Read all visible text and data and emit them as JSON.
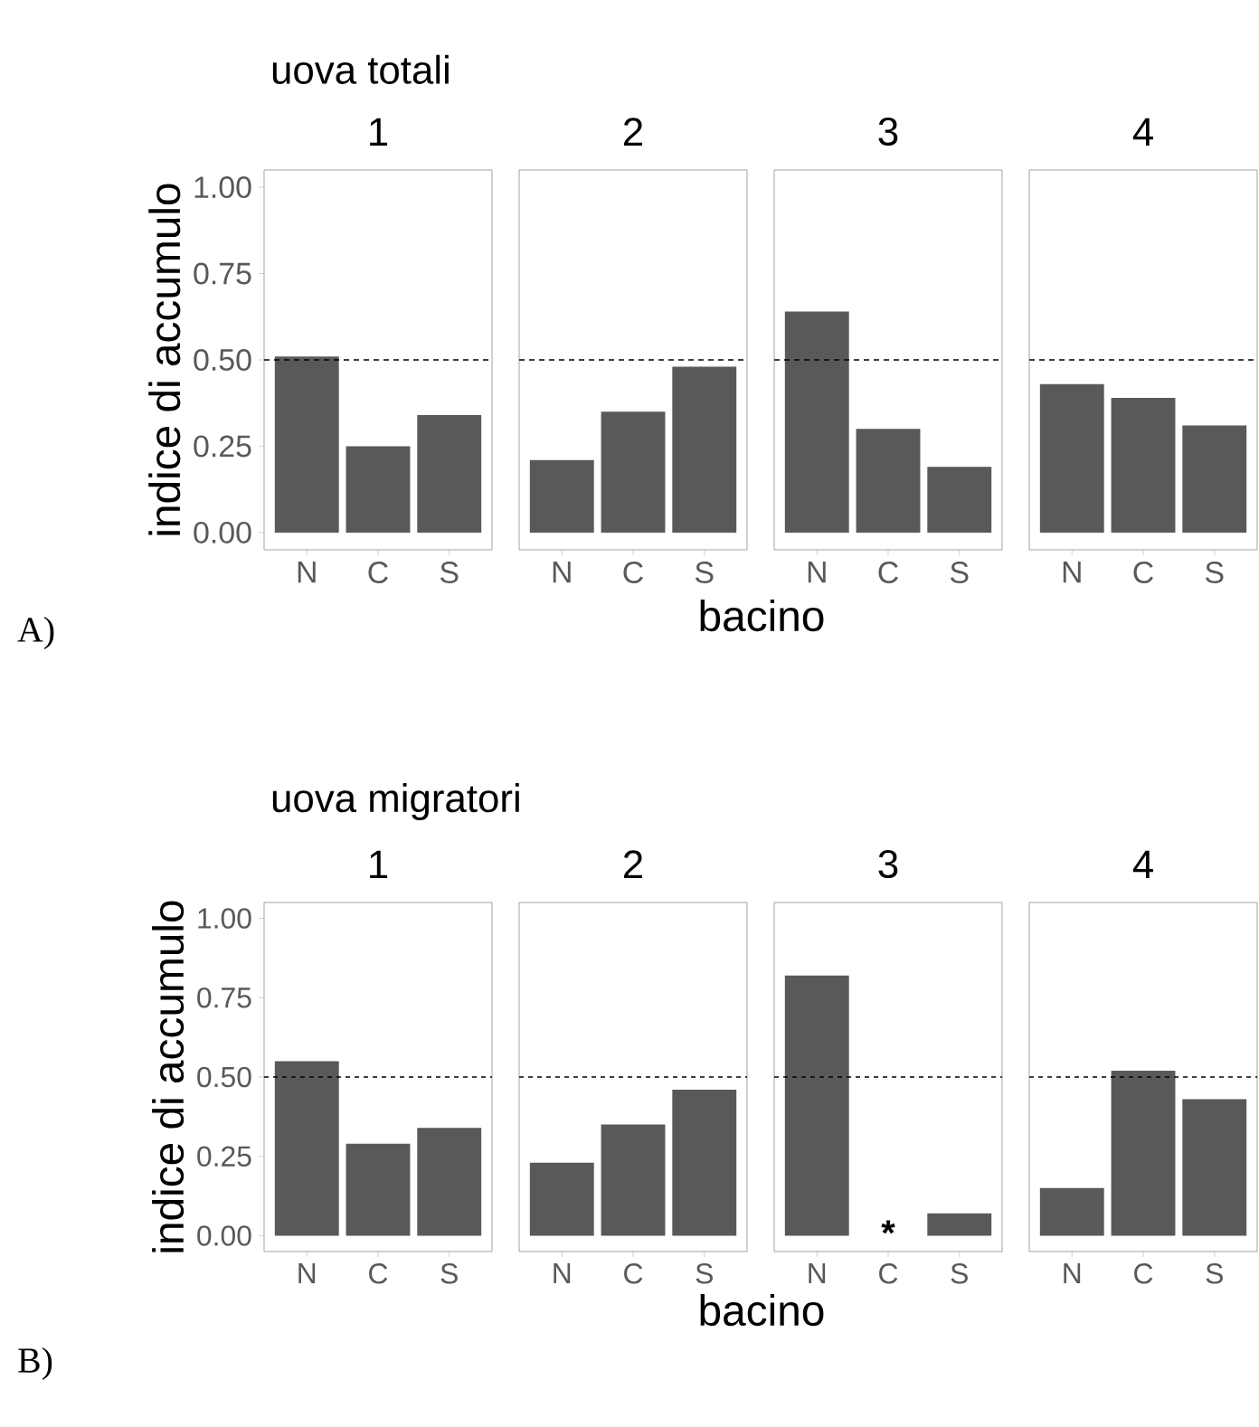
{
  "chart_data": [
    {
      "type": "bar",
      "subtitle": "uova totali",
      "title": "1",
      "ylabel": "indice di accumulo",
      "xlabel": "bacino",
      "annotations": [
        "A)"
      ],
      "categories": [
        "N",
        "C",
        "S"
      ],
      "values": [
        0.51,
        0.25,
        0.34
      ],
      "color": "#595959",
      "ylim": [
        -0.05,
        1.05
      ],
      "yticks": [
        {
          "value": 0,
          "label": "0.00"
        },
        {
          "value": 0.25,
          "label": "0.25"
        },
        {
          "value": 0.5,
          "label": "0.50"
        },
        {
          "value": 0.75,
          "label": "0.75"
        },
        {
          "value": 1,
          "label": "1.00"
        }
      ],
      "ref_lines": [
        {
          "axis": "y",
          "value": 0.5,
          "line_style": "dashed"
        }
      ]
    },
    {
      "type": "bar",
      "title": "2",
      "categories": [
        "N",
        "C",
        "S"
      ],
      "values": [
        0.21,
        0.35,
        0.48
      ],
      "color": "#595959",
      "ylim": [
        -0.05,
        1.05
      ],
      "tick_labels": "x",
      "ref_lines": [
        {
          "axis": "y",
          "value": 0.5,
          "line_style": "dashed"
        }
      ]
    },
    {
      "type": "bar",
      "title": "3",
      "categories": [
        "N",
        "C",
        "S"
      ],
      "values": [
        0.64,
        0.3,
        0.19
      ],
      "color": "#595959",
      "ylim": [
        -0.05,
        1.05
      ],
      "tick_labels": "x",
      "ref_lines": [
        {
          "axis": "y",
          "value": 0.5,
          "line_style": "dashed"
        }
      ]
    },
    {
      "type": "bar",
      "title": "4",
      "categories": [
        "N",
        "C",
        "S"
      ],
      "values": [
        0.43,
        0.39,
        0.31
      ],
      "color": "#595959",
      "ylim": [
        -0.05,
        1.05
      ],
      "tick_labels": "x",
      "ref_lines": [
        {
          "axis": "y",
          "value": 0.5,
          "line_style": "dashed"
        }
      ]
    },
    {
      "type": "bar",
      "subtitle": "uova migratori",
      "title": "1",
      "ylabel": "indice di accumulo",
      "xlabel": "bacino",
      "annotations": [
        "B)"
      ],
      "categories": [
        "N",
        "C",
        "S"
      ],
      "values": [
        0.55,
        0.29,
        0.34
      ],
      "color": "#595959",
      "ylim": [
        -0.05,
        1.05
      ],
      "yticks": [
        {
          "value": 0,
          "label": "0.00"
        },
        {
          "value": 0.25,
          "label": "0.25"
        },
        {
          "value": 0.5,
          "label": "0.50"
        },
        {
          "value": 0.75,
          "label": "0.75"
        },
        {
          "value": 1,
          "label": "1.00"
        }
      ],
      "ref_lines": [
        {
          "axis": "y",
          "value": 0.5,
          "line_style": "dotted"
        }
      ]
    },
    {
      "type": "bar",
      "title": "2",
      "categories": [
        "N",
        "C",
        "S"
      ],
      "values": [
        0.23,
        0.35,
        0.46
      ],
      "color": "#595959",
      "ylim": [
        -0.05,
        1.05
      ],
      "tick_labels": "x",
      "ref_lines": [
        {
          "axis": "y",
          "value": 0.5,
          "line_style": "dotted"
        }
      ]
    },
    {
      "type": "bar",
      "title": "3",
      "categories": [
        "N",
        "C",
        "S"
      ],
      "values": [
        0.82,
        null,
        0.07
      ],
      "color": "#595959",
      "ylim": [
        -0.05,
        1.05
      ],
      "tick_labels": "x",
      "annotations": [
        "*"
      ],
      "ref_lines": [
        {
          "axis": "y",
          "value": 0.5,
          "line_style": "dotted"
        }
      ]
    },
    {
      "type": "bar",
      "title": "4",
      "categories": [
        "N",
        "C",
        "S"
      ],
      "values": [
        0.15,
        0.52,
        0.43
      ],
      "color": "#595959",
      "ylim": [
        -0.05,
        1.05
      ],
      "tick_labels": "x",
      "ref_lines": [
        {
          "axis": "y",
          "value": 0.5,
          "line_style": "dotted"
        }
      ]
    }
  ]
}
